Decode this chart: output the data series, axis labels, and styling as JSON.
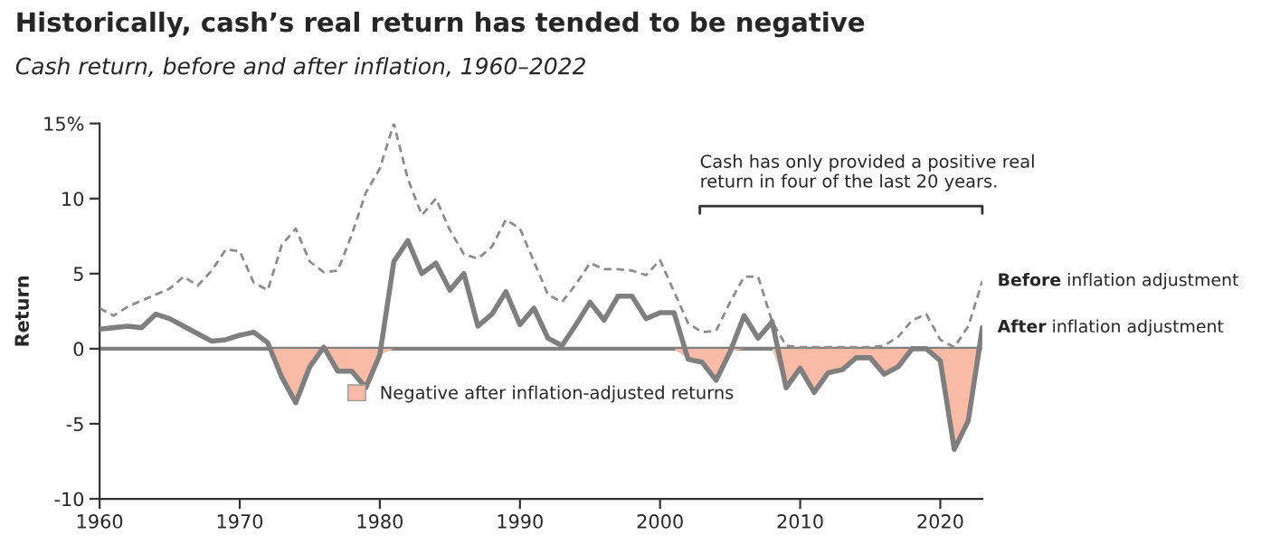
{
  "chart_data": {
    "type": "line",
    "title": "Historically, cash’s real return has tended to be negative",
    "subtitle": "Cash return, before and after inflation, 1960–2022",
    "ylabel": "Return",
    "x": [
      1960,
      1961,
      1962,
      1963,
      1964,
      1965,
      1966,
      1967,
      1968,
      1969,
      1970,
      1971,
      1972,
      1973,
      1974,
      1975,
      1976,
      1977,
      1978,
      1979,
      1980,
      1981,
      1982,
      1983,
      1984,
      1985,
      1986,
      1987,
      1988,
      1989,
      1990,
      1991,
      1992,
      1993,
      1994,
      1995,
      1996,
      1997,
      1998,
      1999,
      2000,
      2001,
      2002,
      2003,
      2004,
      2005,
      2006,
      2007,
      2008,
      2009,
      2010,
      2011,
      2012,
      2013,
      2014,
      2015,
      2016,
      2017,
      2018,
      2019,
      2020,
      2021,
      2022,
      2023
    ],
    "series": [
      {
        "name": "Negative after inflation-adjusted returns",
        "type": "area",
        "color": "#f9bba6",
        "values": [
          0,
          0,
          0,
          0,
          0,
          0,
          0,
          0,
          0,
          0,
          0,
          0,
          0,
          -1.9,
          -3.6,
          -1.2,
          0,
          -1.5,
          -1.5,
          -2.6,
          -0.4,
          0,
          0,
          0,
          0,
          0,
          0,
          0,
          0,
          0,
          0,
          0,
          0,
          0,
          0,
          0,
          0,
          0,
          0,
          0,
          0,
          0,
          -0.7,
          -0.9,
          -2.1,
          -0.2,
          0,
          0,
          0,
          -2.6,
          -1.3,
          -2.9,
          -1.6,
          -1.4,
          -0.6,
          -0.6,
          -1.7,
          -1.2,
          0,
          0,
          -0.8,
          -6.7,
          -4.8,
          0
        ]
      },
      {
        "name": "Before inflation adjustment",
        "color": "#8c8c8c",
        "line_style": "dashed",
        "values": [
          2.7,
          2.2,
          2.8,
          3.2,
          3.6,
          4.0,
          4.8,
          4.2,
          5.2,
          6.6,
          6.5,
          4.4,
          3.9,
          6.9,
          8.0,
          5.8,
          5.1,
          5.2,
          7.6,
          10.4,
          12.0,
          15.0,
          11.3,
          8.9,
          10.0,
          7.9,
          6.3,
          6.0,
          6.8,
          8.6,
          8.0,
          5.8,
          3.6,
          3.1,
          4.3,
          5.7,
          5.3,
          5.3,
          5.2,
          4.9,
          5.9,
          3.8,
          1.7,
          1.1,
          1.2,
          3.1,
          4.8,
          4.8,
          1.8,
          0.2,
          0.1,
          0.1,
          0.1,
          0.1,
          0.1,
          0.1,
          0.2,
          0.8,
          1.9,
          2.3,
          0.6,
          0.1,
          1.5,
          4.5
        ]
      },
      {
        "name": "After inflation adjustment",
        "color": "#7f7f7f",
        "line_style": "solid",
        "values": [
          1.3,
          1.4,
          1.5,
          1.4,
          2.3,
          2.0,
          1.5,
          1.0,
          0.5,
          0.6,
          0.9,
          1.1,
          0.4,
          -1.9,
          -3.6,
          -1.2,
          0.1,
          -1.5,
          -1.5,
          -2.6,
          -0.4,
          5.8,
          7.2,
          5.0,
          5.7,
          3.9,
          5.0,
          1.5,
          2.3,
          3.8,
          1.6,
          2.7,
          0.7,
          0.2,
          1.6,
          3.1,
          1.9,
          3.5,
          3.5,
          2.0,
          2.4,
          2.4,
          -0.7,
          -0.9,
          -2.1,
          -0.2,
          2.2,
          0.7,
          1.8,
          -2.6,
          -1.3,
          -2.9,
          -1.6,
          -1.4,
          -0.6,
          -0.6,
          -1.7,
          -1.2,
          0.0,
          0.0,
          -0.8,
          -6.7,
          -4.8,
          1.4
        ]
      }
    ],
    "xlim": [
      1960,
      2023
    ],
    "xticks": [
      1960,
      1970,
      1980,
      1990,
      2000,
      2010,
      2020
    ],
    "ylim": [
      -10,
      15
    ],
    "yticks": [
      -10,
      -5,
      0,
      5,
      10,
      {
        "value": 15,
        "label": "15%"
      }
    ],
    "ref_lines": [
      {
        "axis": "y",
        "value": 0,
        "color": "#7f7f7f"
      }
    ],
    "annotations": [
      "Cash has only provided a positive real\nreturn in four of the last 20 years."
    ],
    "legend": "center",
    "grid": false
  }
}
